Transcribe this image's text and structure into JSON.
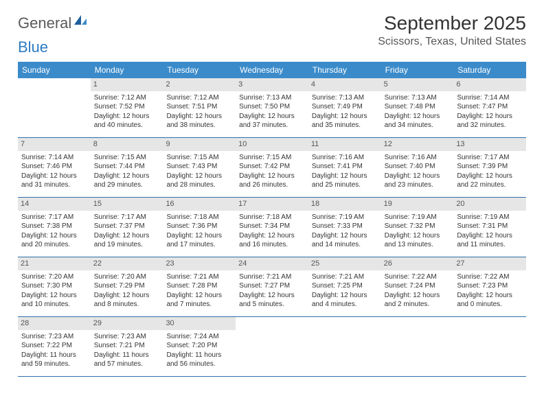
{
  "logo": {
    "text1": "General",
    "text2": "Blue"
  },
  "header": {
    "month_title": "September 2025",
    "location": "Scissors, Texas, United States"
  },
  "colors": {
    "header_bg": "#3b8bca",
    "header_text": "#ffffff",
    "divider": "#2d6da8",
    "daynum_bg": "#e6e6e6",
    "text": "#333333"
  },
  "day_names": [
    "Sunday",
    "Monday",
    "Tuesday",
    "Wednesday",
    "Thursday",
    "Friday",
    "Saturday"
  ],
  "weeks": [
    [
      {
        "num": "",
        "sunrise": "",
        "sunset": "",
        "daylight": ""
      },
      {
        "num": "1",
        "sunrise": "Sunrise: 7:12 AM",
        "sunset": "Sunset: 7:52 PM",
        "daylight": "Daylight: 12 hours and 40 minutes."
      },
      {
        "num": "2",
        "sunrise": "Sunrise: 7:12 AM",
        "sunset": "Sunset: 7:51 PM",
        "daylight": "Daylight: 12 hours and 38 minutes."
      },
      {
        "num": "3",
        "sunrise": "Sunrise: 7:13 AM",
        "sunset": "Sunset: 7:50 PM",
        "daylight": "Daylight: 12 hours and 37 minutes."
      },
      {
        "num": "4",
        "sunrise": "Sunrise: 7:13 AM",
        "sunset": "Sunset: 7:49 PM",
        "daylight": "Daylight: 12 hours and 35 minutes."
      },
      {
        "num": "5",
        "sunrise": "Sunrise: 7:13 AM",
        "sunset": "Sunset: 7:48 PM",
        "daylight": "Daylight: 12 hours and 34 minutes."
      },
      {
        "num": "6",
        "sunrise": "Sunrise: 7:14 AM",
        "sunset": "Sunset: 7:47 PM",
        "daylight": "Daylight: 12 hours and 32 minutes."
      }
    ],
    [
      {
        "num": "7",
        "sunrise": "Sunrise: 7:14 AM",
        "sunset": "Sunset: 7:46 PM",
        "daylight": "Daylight: 12 hours and 31 minutes."
      },
      {
        "num": "8",
        "sunrise": "Sunrise: 7:15 AM",
        "sunset": "Sunset: 7:44 PM",
        "daylight": "Daylight: 12 hours and 29 minutes."
      },
      {
        "num": "9",
        "sunrise": "Sunrise: 7:15 AM",
        "sunset": "Sunset: 7:43 PM",
        "daylight": "Daylight: 12 hours and 28 minutes."
      },
      {
        "num": "10",
        "sunrise": "Sunrise: 7:15 AM",
        "sunset": "Sunset: 7:42 PM",
        "daylight": "Daylight: 12 hours and 26 minutes."
      },
      {
        "num": "11",
        "sunrise": "Sunrise: 7:16 AM",
        "sunset": "Sunset: 7:41 PM",
        "daylight": "Daylight: 12 hours and 25 minutes."
      },
      {
        "num": "12",
        "sunrise": "Sunrise: 7:16 AM",
        "sunset": "Sunset: 7:40 PM",
        "daylight": "Daylight: 12 hours and 23 minutes."
      },
      {
        "num": "13",
        "sunrise": "Sunrise: 7:17 AM",
        "sunset": "Sunset: 7:39 PM",
        "daylight": "Daylight: 12 hours and 22 minutes."
      }
    ],
    [
      {
        "num": "14",
        "sunrise": "Sunrise: 7:17 AM",
        "sunset": "Sunset: 7:38 PM",
        "daylight": "Daylight: 12 hours and 20 minutes."
      },
      {
        "num": "15",
        "sunrise": "Sunrise: 7:17 AM",
        "sunset": "Sunset: 7:37 PM",
        "daylight": "Daylight: 12 hours and 19 minutes."
      },
      {
        "num": "16",
        "sunrise": "Sunrise: 7:18 AM",
        "sunset": "Sunset: 7:36 PM",
        "daylight": "Daylight: 12 hours and 17 minutes."
      },
      {
        "num": "17",
        "sunrise": "Sunrise: 7:18 AM",
        "sunset": "Sunset: 7:34 PM",
        "daylight": "Daylight: 12 hours and 16 minutes."
      },
      {
        "num": "18",
        "sunrise": "Sunrise: 7:19 AM",
        "sunset": "Sunset: 7:33 PM",
        "daylight": "Daylight: 12 hours and 14 minutes."
      },
      {
        "num": "19",
        "sunrise": "Sunrise: 7:19 AM",
        "sunset": "Sunset: 7:32 PM",
        "daylight": "Daylight: 12 hours and 13 minutes."
      },
      {
        "num": "20",
        "sunrise": "Sunrise: 7:19 AM",
        "sunset": "Sunset: 7:31 PM",
        "daylight": "Daylight: 12 hours and 11 minutes."
      }
    ],
    [
      {
        "num": "21",
        "sunrise": "Sunrise: 7:20 AM",
        "sunset": "Sunset: 7:30 PM",
        "daylight": "Daylight: 12 hours and 10 minutes."
      },
      {
        "num": "22",
        "sunrise": "Sunrise: 7:20 AM",
        "sunset": "Sunset: 7:29 PM",
        "daylight": "Daylight: 12 hours and 8 minutes."
      },
      {
        "num": "23",
        "sunrise": "Sunrise: 7:21 AM",
        "sunset": "Sunset: 7:28 PM",
        "daylight": "Daylight: 12 hours and 7 minutes."
      },
      {
        "num": "24",
        "sunrise": "Sunrise: 7:21 AM",
        "sunset": "Sunset: 7:27 PM",
        "daylight": "Daylight: 12 hours and 5 minutes."
      },
      {
        "num": "25",
        "sunrise": "Sunrise: 7:21 AM",
        "sunset": "Sunset: 7:25 PM",
        "daylight": "Daylight: 12 hours and 4 minutes."
      },
      {
        "num": "26",
        "sunrise": "Sunrise: 7:22 AM",
        "sunset": "Sunset: 7:24 PM",
        "daylight": "Daylight: 12 hours and 2 minutes."
      },
      {
        "num": "27",
        "sunrise": "Sunrise: 7:22 AM",
        "sunset": "Sunset: 7:23 PM",
        "daylight": "Daylight: 12 hours and 0 minutes."
      }
    ],
    [
      {
        "num": "28",
        "sunrise": "Sunrise: 7:23 AM",
        "sunset": "Sunset: 7:22 PM",
        "daylight": "Daylight: 11 hours and 59 minutes."
      },
      {
        "num": "29",
        "sunrise": "Sunrise: 7:23 AM",
        "sunset": "Sunset: 7:21 PM",
        "daylight": "Daylight: 11 hours and 57 minutes."
      },
      {
        "num": "30",
        "sunrise": "Sunrise: 7:24 AM",
        "sunset": "Sunset: 7:20 PM",
        "daylight": "Daylight: 11 hours and 56 minutes."
      },
      {
        "num": "",
        "sunrise": "",
        "sunset": "",
        "daylight": ""
      },
      {
        "num": "",
        "sunrise": "",
        "sunset": "",
        "daylight": ""
      },
      {
        "num": "",
        "sunrise": "",
        "sunset": "",
        "daylight": ""
      },
      {
        "num": "",
        "sunrise": "",
        "sunset": "",
        "daylight": ""
      }
    ]
  ]
}
